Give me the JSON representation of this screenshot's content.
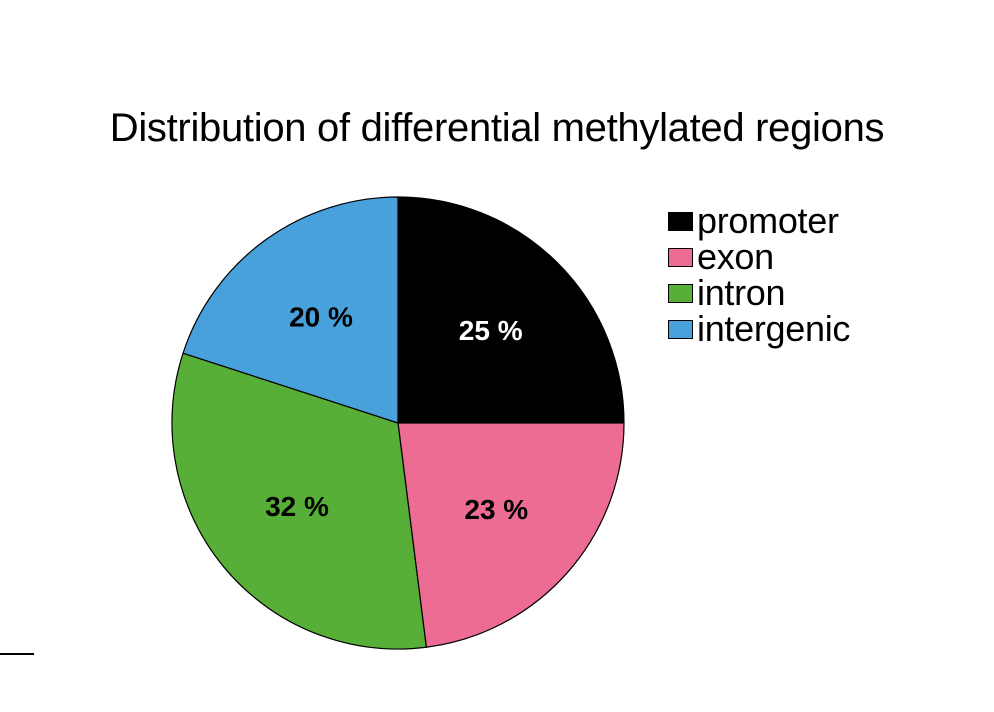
{
  "chart_data": {
    "type": "pie",
    "title": "Distribution of differential methylated regions",
    "categories": [
      "promoter",
      "exon",
      "intron",
      "intergenic"
    ],
    "values": [
      25,
      23,
      32,
      20
    ],
    "labels": [
      "25 %",
      "23 %",
      "32 %",
      "20 %"
    ],
    "colors": [
      "#000000",
      "#EC6C94",
      "#58AF37",
      "#49A1DB"
    ],
    "label_colors": [
      "#ffffff",
      "#000000",
      "#000000",
      "#000000"
    ],
    "start_angle_deg": 0,
    "direction": "clockwise-from-top",
    "legend_position": "top-right",
    "legend": [
      "promoter",
      "exon",
      "intron",
      "intergenic"
    ]
  }
}
